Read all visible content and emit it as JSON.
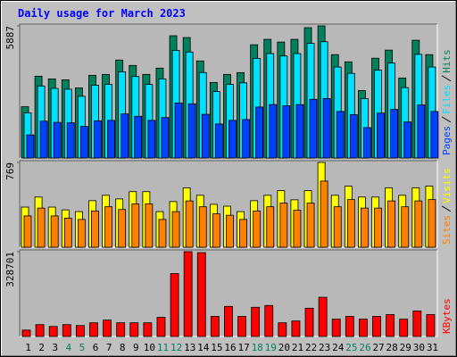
{
  "chart_data": [
    {
      "type": "bar",
      "title": "Daily usage for March 2023",
      "ylim": [
        0,
        5887
      ],
      "yticks": [
        5887
      ],
      "series": [
        {
          "name": "Pages",
          "color": "#0040ff",
          "values": [
            1027,
            1640,
            1586,
            1568,
            1406,
            1658,
            1676,
            1964,
            1856,
            1676,
            1802,
            2451,
            2415,
            1946,
            1514,
            1676,
            1712,
            2271,
            2379,
            2325,
            2379,
            2613,
            2649,
            2073,
            1928,
            1352,
            2001,
            2163,
            1604,
            2361,
            2073
          ]
        },
        {
          "name": "Files",
          "color": "#00e0ff",
          "values": [
            2009,
            3208,
            3101,
            3066,
            2749,
            3243,
            3278,
            3841,
            3630,
            3278,
            3524,
            4793,
            4723,
            3806,
            2960,
            3278,
            3348,
            4440,
            4653,
            4546,
            4653,
            5110,
            5181,
            4053,
            3771,
            2644,
            3912,
            4229,
            3136,
            4617,
            4053
          ]
        },
        {
          "name": "Hits",
          "color": "#00805c",
          "values": [
            2283,
            3645,
            3524,
            3484,
            3124,
            3685,
            3725,
            4365,
            4125,
            3725,
            4005,
            5447,
            5367,
            4325,
            3364,
            3725,
            3805,
            5046,
            5287,
            5166,
            5287,
            5807,
            5887,
            4606,
            4285,
            3004,
            4446,
            4806,
            3564,
            5247,
            4606
          ]
        }
      ]
    },
    {
      "type": "bar",
      "ylim": [
        0,
        769
      ],
      "yticks": [
        769
      ],
      "series": [
        {
          "name": "Sites",
          "color": "#ff8000",
          "values": [
            284,
            355,
            284,
            264,
            252,
            329,
            367,
            342,
            393,
            393,
            252,
            323,
            420,
            367,
            303,
            290,
            252,
            329,
            367,
            400,
            335,
            400,
            600,
            367,
            432,
            355,
            355,
            420,
            367,
            420,
            432
          ]
        },
        {
          "name": "Visits",
          "color": "#ffff00",
          "values": [
            364,
            455,
            364,
            339,
            323,
            422,
            471,
            438,
            504,
            504,
            323,
            414,
            538,
            471,
            389,
            372,
            323,
            422,
            471,
            513,
            430,
            513,
            769,
            471,
            554,
            455,
            455,
            538,
            471,
            538,
            554
          ]
        }
      ]
    },
    {
      "type": "bar",
      "ylim": [
        0,
        328701
      ],
      "yticks": [
        328701
      ],
      "categories": [
        "1",
        "2",
        "3",
        "4",
        "5",
        "6",
        "7",
        "8",
        "9",
        "10",
        "11",
        "12",
        "13",
        "14",
        "15",
        "16",
        "17",
        "18",
        "19",
        "20",
        "21",
        "22",
        "23",
        "24",
        "25",
        "26",
        "27",
        "28",
        "29",
        "30",
        "31"
      ],
      "category_colors": [
        "#000000",
        "#000000",
        "#000000",
        "#00805c",
        "#00805c",
        "#000000",
        "#000000",
        "#000000",
        "#000000",
        "#000000",
        "#00805c",
        "#00805c",
        "#000000",
        "#000000",
        "#000000",
        "#000000",
        "#000000",
        "#00805c",
        "#00805c",
        "#000000",
        "#000000",
        "#000000",
        "#000000",
        "#000000",
        "#00805c",
        "#00805c",
        "#000000",
        "#000000",
        "#000000",
        "#000000",
        "#000000"
      ],
      "series": [
        {
          "name": "KBytes",
          "color": "#ff0000",
          "values": [
            24738,
            45942,
            38874,
            45942,
            42408,
            53010,
            63612,
            53010,
            53010,
            53010,
            74214,
            243846,
            328701,
            325000,
            77748,
            116622,
            77748,
            113088,
            120156,
            53010,
            60078,
            109554,
            151962,
            67146,
            77748,
            67146,
            77748,
            84816,
            67146,
            98952,
            84816
          ]
        }
      ]
    }
  ]
}
